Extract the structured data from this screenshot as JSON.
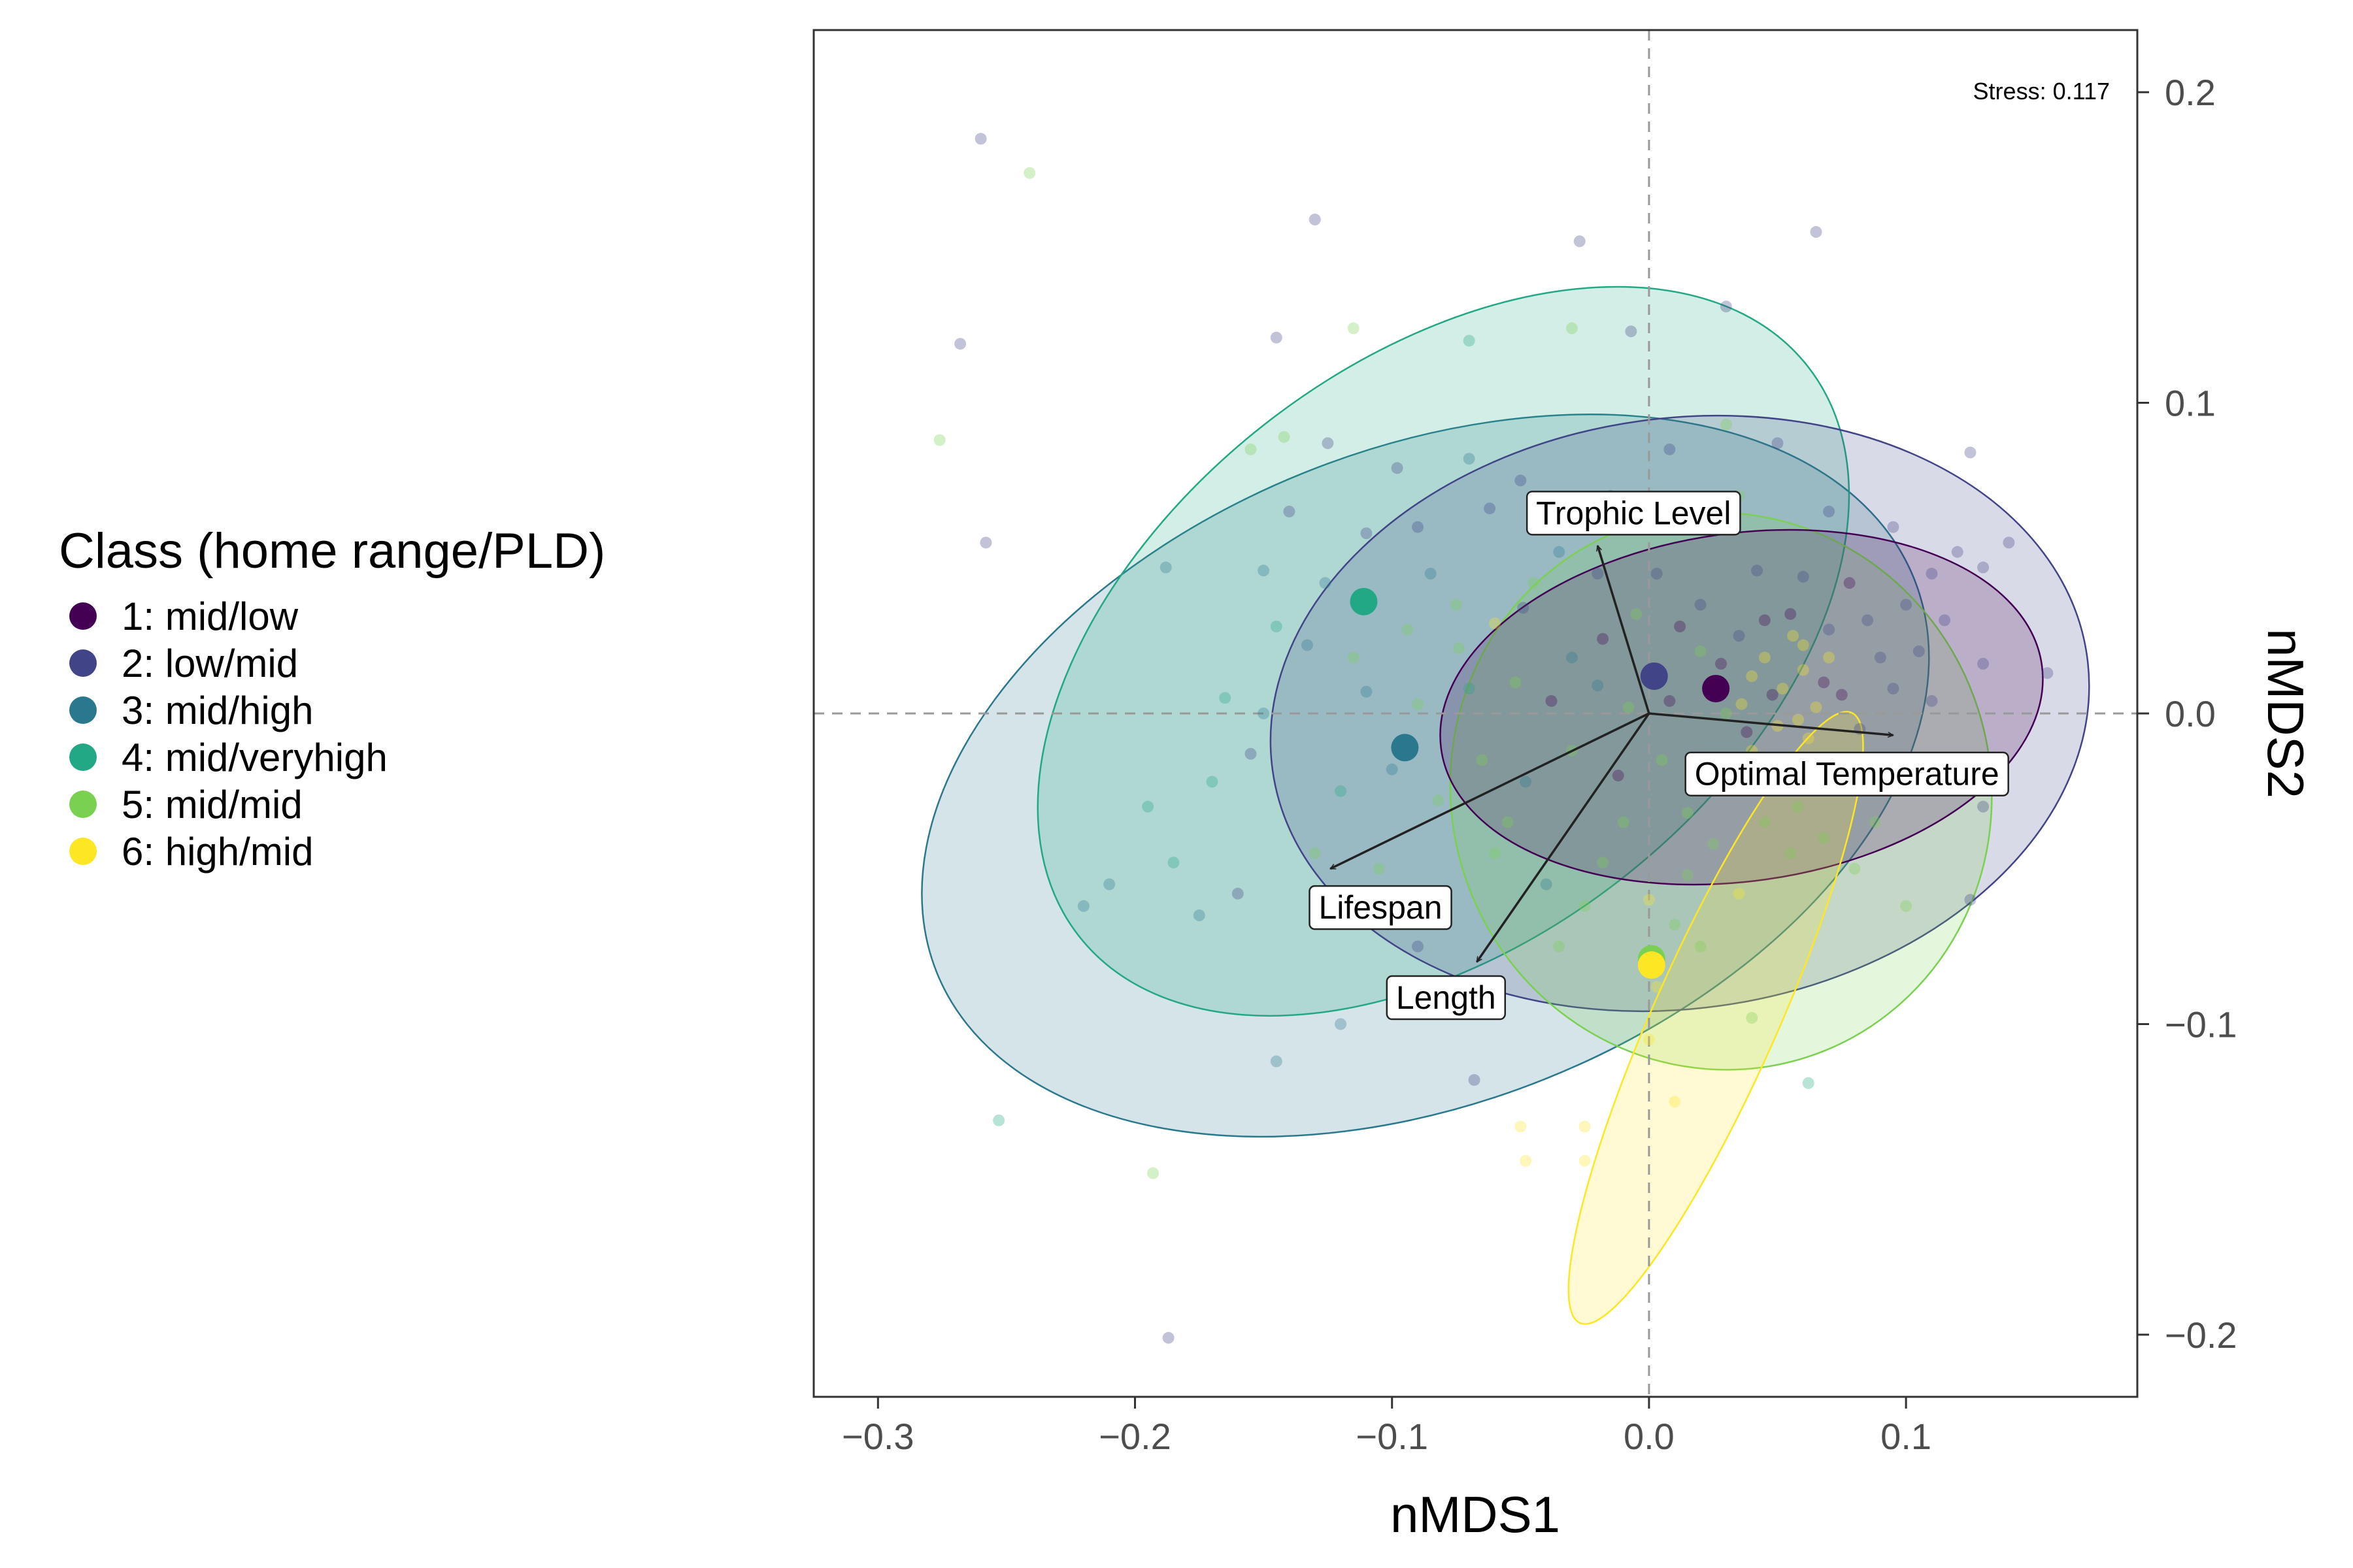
{
  "chart_data": {
    "type": "scatter",
    "stress_label": "Stress: 0.117",
    "xlabel": "nMDS1",
    "ylabel": "nMDS2",
    "xlim": [
      -0.325,
      0.19
    ],
    "ylim": [
      -0.22,
      0.22
    ],
    "x_ticks": [
      -0.3,
      -0.2,
      -0.1,
      0.0,
      0.1
    ],
    "x_tick_labels": [
      "−0.3",
      "−0.2",
      "−0.1",
      "0.0",
      "0.1"
    ],
    "y_ticks": [
      0.2,
      0.1,
      0.0,
      -0.1,
      -0.2
    ],
    "y_tick_labels": [
      "0.2",
      "0.1",
      "0.0",
      "−0.1",
      "−0.2"
    ],
    "legend_title": "Class (home range/PLD)",
    "legend_position": "left",
    "classes": [
      {
        "label": "1: mid/low",
        "color": "#440154",
        "centroid": [
          0.026,
          0.008
        ]
      },
      {
        "label": "2: low/mid",
        "color": "#414487",
        "centroid": [
          0.002,
          0.012
        ]
      },
      {
        "label": "3: mid/high",
        "color": "#2A788E",
        "centroid": [
          -0.095,
          -0.011
        ]
      },
      {
        "label": "4: mid/veryhigh",
        "color": "#22A884",
        "centroid": [
          -0.111,
          0.036
        ]
      },
      {
        "label": "5: mid/mid",
        "color": "#7AD151",
        "centroid": [
          0.001,
          -0.079
        ]
      },
      {
        "label": "6: high/mid",
        "color": "#FDE725",
        "centroid": [
          0.001,
          -0.081
        ]
      }
    ],
    "ellipses": [
      {
        "class": "3: mid/high",
        "cx": -0.087,
        "cy": -0.02,
        "rx": 0.205,
        "ry": 0.105,
        "angle": 22
      },
      {
        "class": "4: mid/veryhigh",
        "cx": -0.08,
        "cy": 0.02,
        "rx": 0.18,
        "ry": 0.093,
        "angle": 38
      },
      {
        "class": "2: low/mid",
        "cx": 0.012,
        "cy": 0.0,
        "rx": 0.16,
        "ry": 0.095,
        "angle": 8
      },
      {
        "class": "5: mid/mid",
        "cx": 0.028,
        "cy": -0.025,
        "rx": 0.105,
        "ry": 0.09,
        "angle": 18
      },
      {
        "class": "1: mid/low",
        "cx": 0.036,
        "cy": 0.002,
        "rx": 0.118,
        "ry": 0.056,
        "angle": 8
      },
      {
        "class": "6: high/mid",
        "cx": 0.026,
        "cy": -0.098,
        "rx": 0.13,
        "ry": 0.02,
        "angle": 66
      }
    ],
    "vectors": [
      {
        "label": "Trophic Level",
        "x": -0.02,
        "y": 0.054
      },
      {
        "label": "Optimal Temperature",
        "x": 0.095,
        "y": -0.007
      },
      {
        "label": "Lifespan",
        "x": -0.124,
        "y": -0.05
      },
      {
        "label": "Length",
        "x": -0.067,
        "y": -0.08
      }
    ],
    "points": [
      {
        "x": -0.26,
        "y": 0.185,
        "c": 1
      },
      {
        "x": -0.241,
        "y": 0.174,
        "c": 4
      },
      {
        "x": -0.13,
        "y": 0.159,
        "c": 1
      },
      {
        "x": 0.065,
        "y": 0.155,
        "c": 1
      },
      {
        "x": -0.027,
        "y": 0.152,
        "c": 1
      },
      {
        "x": 0.03,
        "y": 0.131,
        "c": 1
      },
      {
        "x": -0.268,
        "y": 0.119,
        "c": 1
      },
      {
        "x": -0.145,
        "y": 0.121,
        "c": 1
      },
      {
        "x": -0.115,
        "y": 0.124,
        "c": 4
      },
      {
        "x": -0.07,
        "y": 0.12,
        "c": 3
      },
      {
        "x": -0.03,
        "y": 0.124,
        "c": 4
      },
      {
        "x": -0.007,
        "y": 0.123,
        "c": 1
      },
      {
        "x": -0.276,
        "y": 0.088,
        "c": 4
      },
      {
        "x": -0.155,
        "y": 0.085,
        "c": 4
      },
      {
        "x": -0.142,
        "y": 0.089,
        "c": 4
      },
      {
        "x": -0.125,
        "y": 0.087,
        "c": 1
      },
      {
        "x": -0.098,
        "y": 0.079,
        "c": 1
      },
      {
        "x": -0.07,
        "y": 0.082,
        "c": 2
      },
      {
        "x": 0.008,
        "y": 0.085,
        "c": 1
      },
      {
        "x": 0.03,
        "y": 0.093,
        "c": 4
      },
      {
        "x": 0.05,
        "y": 0.087,
        "c": 1
      },
      {
        "x": 0.125,
        "y": 0.084,
        "c": 1
      },
      {
        "x": -0.258,
        "y": 0.055,
        "c": 1
      },
      {
        "x": -0.188,
        "y": 0.047,
        "c": 2
      },
      {
        "x": -0.15,
        "y": 0.046,
        "c": 2
      },
      {
        "x": -0.126,
        "y": 0.042,
        "c": 2
      },
      {
        "x": -0.09,
        "y": 0.06,
        "c": 1
      },
      {
        "x": -0.062,
        "y": 0.066,
        "c": 1
      },
      {
        "x": -0.035,
        "y": 0.052,
        "c": 2
      },
      {
        "x": 0.11,
        "y": 0.045,
        "c": 1
      },
      {
        "x": 0.12,
        "y": 0.052,
        "c": 1
      },
      {
        "x": 0.13,
        "y": 0.047,
        "c": 1
      },
      {
        "x": 0.14,
        "y": 0.055,
        "c": 1
      },
      {
        "x": -0.145,
        "y": 0.028,
        "c": 3
      },
      {
        "x": -0.133,
        "y": 0.022,
        "c": 2
      },
      {
        "x": -0.115,
        "y": 0.018,
        "c": 4
      },
      {
        "x": -0.094,
        "y": 0.027,
        "c": 4
      },
      {
        "x": -0.074,
        "y": 0.021,
        "c": 4
      },
      {
        "x": -0.06,
        "y": 0.029,
        "c": 5
      },
      {
        "x": -0.049,
        "y": 0.034,
        "c": 1
      },
      {
        "x": -0.03,
        "y": 0.018,
        "c": 2
      },
      {
        "x": -0.018,
        "y": 0.024,
        "c": 0
      },
      {
        "x": -0.005,
        "y": 0.032,
        "c": 4
      },
      {
        "x": 0.012,
        "y": 0.028,
        "c": 0
      },
      {
        "x": 0.02,
        "y": 0.02,
        "c": 4
      },
      {
        "x": 0.035,
        "y": 0.025,
        "c": 1
      },
      {
        "x": 0.045,
        "y": 0.03,
        "c": 0
      },
      {
        "x": 0.06,
        "y": 0.022,
        "c": 5
      },
      {
        "x": 0.07,
        "y": 0.027,
        "c": 1
      },
      {
        "x": 0.09,
        "y": 0.018,
        "c": 1
      },
      {
        "x": 0.105,
        "y": 0.02,
        "c": 1
      },
      {
        "x": 0.13,
        "y": 0.016,
        "c": 1
      },
      {
        "x": 0.155,
        "y": 0.013,
        "c": 1
      },
      {
        "x": -0.165,
        "y": 0.005,
        "c": 3
      },
      {
        "x": -0.15,
        "y": 0.0,
        "c": 2
      },
      {
        "x": -0.11,
        "y": 0.007,
        "c": 2
      },
      {
        "x": -0.09,
        "y": 0.003,
        "c": 4
      },
      {
        "x": -0.07,
        "y": 0.008,
        "c": 3
      },
      {
        "x": -0.052,
        "y": 0.01,
        "c": 4
      },
      {
        "x": -0.038,
        "y": 0.004,
        "c": 0
      },
      {
        "x": -0.02,
        "y": 0.009,
        "c": 2
      },
      {
        "x": -0.008,
        "y": 0.002,
        "c": 4
      },
      {
        "x": 0.008,
        "y": 0.004,
        "c": 0
      },
      {
        "x": 0.03,
        "y": 0.0,
        "c": 4
      },
      {
        "x": 0.048,
        "y": 0.006,
        "c": 0
      },
      {
        "x": 0.058,
        "y": -0.002,
        "c": 5
      },
      {
        "x": 0.068,
        "y": 0.01,
        "c": 0
      },
      {
        "x": 0.082,
        "y": -0.005,
        "c": 1
      },
      {
        "x": 0.11,
        "y": 0.004,
        "c": 1
      },
      {
        "x": -0.195,
        "y": -0.03,
        "c": 3
      },
      {
        "x": -0.17,
        "y": -0.022,
        "c": 3
      },
      {
        "x": -0.155,
        "y": -0.013,
        "c": 1
      },
      {
        "x": -0.12,
        "y": -0.025,
        "c": 3
      },
      {
        "x": -0.1,
        "y": -0.018,
        "c": 2
      },
      {
        "x": -0.082,
        "y": -0.028,
        "c": 4
      },
      {
        "x": -0.065,
        "y": -0.015,
        "c": 4
      },
      {
        "x": -0.048,
        "y": -0.022,
        "c": 2
      },
      {
        "x": -0.03,
        "y": -0.012,
        "c": 4
      },
      {
        "x": -0.012,
        "y": -0.02,
        "c": 0
      },
      {
        "x": 0.005,
        "y": -0.015,
        "c": 4
      },
      {
        "x": 0.025,
        "y": -0.02,
        "c": 0
      },
      {
        "x": 0.04,
        "y": -0.012,
        "c": 5
      },
      {
        "x": 0.058,
        "y": -0.03,
        "c": 4
      },
      {
        "x": 0.075,
        "y": -0.018,
        "c": 1
      },
      {
        "x": 0.098,
        "y": -0.025,
        "c": 4
      },
      {
        "x": 0.13,
        "y": -0.03,
        "c": 1
      },
      {
        "x": -0.21,
        "y": -0.055,
        "c": 2
      },
      {
        "x": -0.185,
        "y": -0.048,
        "c": 3
      },
      {
        "x": -0.16,
        "y": -0.058,
        "c": 1
      },
      {
        "x": -0.13,
        "y": -0.045,
        "c": 4
      },
      {
        "x": -0.105,
        "y": -0.05,
        "c": 4
      },
      {
        "x": -0.085,
        "y": -0.06,
        "c": 1
      },
      {
        "x": -0.06,
        "y": -0.045,
        "c": 4
      },
      {
        "x": -0.04,
        "y": -0.055,
        "c": 2
      },
      {
        "x": -0.018,
        "y": -0.048,
        "c": 4
      },
      {
        "x": 0.0,
        "y": -0.06,
        "c": 5
      },
      {
        "x": 0.015,
        "y": -0.052,
        "c": 4
      },
      {
        "x": 0.035,
        "y": -0.058,
        "c": 5
      },
      {
        "x": 0.055,
        "y": -0.045,
        "c": 4
      },
      {
        "x": 0.08,
        "y": -0.05,
        "c": 4
      },
      {
        "x": 0.1,
        "y": -0.062,
        "c": 4
      },
      {
        "x": 0.125,
        "y": -0.06,
        "c": 1
      },
      {
        "x": -0.22,
        "y": -0.062,
        "c": 2
      },
      {
        "x": -0.175,
        "y": -0.065,
        "c": 2
      },
      {
        "x": -0.09,
        "y": -0.075,
        "c": 1
      },
      {
        "x": -0.035,
        "y": -0.075,
        "c": 4
      },
      {
        "x": 0.003,
        "y": -0.088,
        "c": 5
      },
      {
        "x": 0.02,
        "y": -0.075,
        "c": 4
      },
      {
        "x": -0.12,
        "y": -0.1,
        "c": 2
      },
      {
        "x": -0.145,
        "y": -0.112,
        "c": 2
      },
      {
        "x": -0.07,
        "y": -0.09,
        "c": 1
      },
      {
        "x": 0.04,
        "y": -0.098,
        "c": 4
      },
      {
        "x": 0.0,
        "y": -0.105,
        "c": 5
      },
      {
        "x": -0.068,
        "y": -0.118,
        "c": 1
      },
      {
        "x": 0.062,
        "y": -0.119,
        "c": 3
      },
      {
        "x": -0.253,
        "y": -0.131,
        "c": 3
      },
      {
        "x": -0.05,
        "y": -0.133,
        "c": 5
      },
      {
        "x": -0.025,
        "y": -0.133,
        "c": 5
      },
      {
        "x": -0.048,
        "y": -0.144,
        "c": 5
      },
      {
        "x": -0.025,
        "y": -0.144,
        "c": 5
      },
      {
        "x": 0.01,
        "y": -0.125,
        "c": 5
      },
      {
        "x": -0.193,
        "y": -0.148,
        "c": 4
      },
      {
        "x": -0.187,
        "y": -0.201,
        "c": 1
      },
      {
        "x": 0.045,
        "y": 0.018,
        "c": 5
      },
      {
        "x": 0.052,
        "y": 0.008,
        "c": 5
      },
      {
        "x": 0.06,
        "y": 0.014,
        "c": 5
      },
      {
        "x": 0.065,
        "y": 0.002,
        "c": 5
      },
      {
        "x": 0.05,
        "y": -0.004,
        "c": 5
      },
      {
        "x": 0.04,
        "y": 0.012,
        "c": 5
      },
      {
        "x": 0.056,
        "y": 0.025,
        "c": 5
      },
      {
        "x": 0.07,
        "y": 0.018,
        "c": 5
      },
      {
        "x": 0.036,
        "y": 0.003,
        "c": 5
      },
      {
        "x": 0.062,
        "y": -0.008,
        "c": 5
      },
      {
        "x": 0.028,
        "y": 0.016,
        "c": 0
      },
      {
        "x": 0.038,
        "y": -0.006,
        "c": 0
      },
      {
        "x": 0.055,
        "y": 0.032,
        "c": 0
      },
      {
        "x": 0.075,
        "y": 0.006,
        "c": 0
      },
      {
        "x": 0.02,
        "y": 0.035,
        "c": 1
      },
      {
        "x": 0.085,
        "y": 0.03,
        "c": 1
      },
      {
        "x": 0.095,
        "y": 0.008,
        "c": 1
      },
      {
        "x": 0.015,
        "y": -0.032,
        "c": 4
      },
      {
        "x": 0.025,
        "y": -0.042,
        "c": 4
      },
      {
        "x": 0.01,
        "y": -0.068,
        "c": 4
      },
      {
        "x": 0.045,
        "y": -0.035,
        "c": 4
      },
      {
        "x": 0.068,
        "y": -0.04,
        "c": 4
      },
      {
        "x": 0.088,
        "y": -0.035,
        "c": 4
      },
      {
        "x": -0.01,
        "y": -0.035,
        "c": 4
      },
      {
        "x": -0.025,
        "y": -0.062,
        "c": 4
      },
      {
        "x": -0.055,
        "y": -0.035,
        "c": 4
      },
      {
        "x": -0.075,
        "y": 0.035,
        "c": 4
      },
      {
        "x": -0.045,
        "y": 0.042,
        "c": 4
      },
      {
        "x": -0.02,
        "y": 0.045,
        "c": 1
      },
      {
        "x": 0.003,
        "y": 0.045,
        "c": 1
      },
      {
        "x": 0.042,
        "y": 0.046,
        "c": 1
      },
      {
        "x": 0.06,
        "y": 0.044,
        "c": 1
      },
      {
        "x": 0.078,
        "y": 0.042,
        "c": 0
      },
      {
        "x": 0.1,
        "y": 0.035,
        "c": 1
      },
      {
        "x": 0.115,
        "y": 0.03,
        "c": 1
      },
      {
        "x": -0.14,
        "y": 0.065,
        "c": 1
      },
      {
        "x": -0.11,
        "y": 0.058,
        "c": 1
      },
      {
        "x": -0.085,
        "y": 0.045,
        "c": 2
      },
      {
        "x": -0.05,
        "y": 0.075,
        "c": 1
      },
      {
        "x": -0.015,
        "y": 0.07,
        "c": 1
      },
      {
        "x": 0.008,
        "y": 0.066,
        "c": 4
      },
      {
        "x": 0.035,
        "y": 0.07,
        "c": 4
      },
      {
        "x": 0.07,
        "y": 0.065,
        "c": 1
      },
      {
        "x": 0.095,
        "y": 0.06,
        "c": 1
      }
    ]
  }
}
